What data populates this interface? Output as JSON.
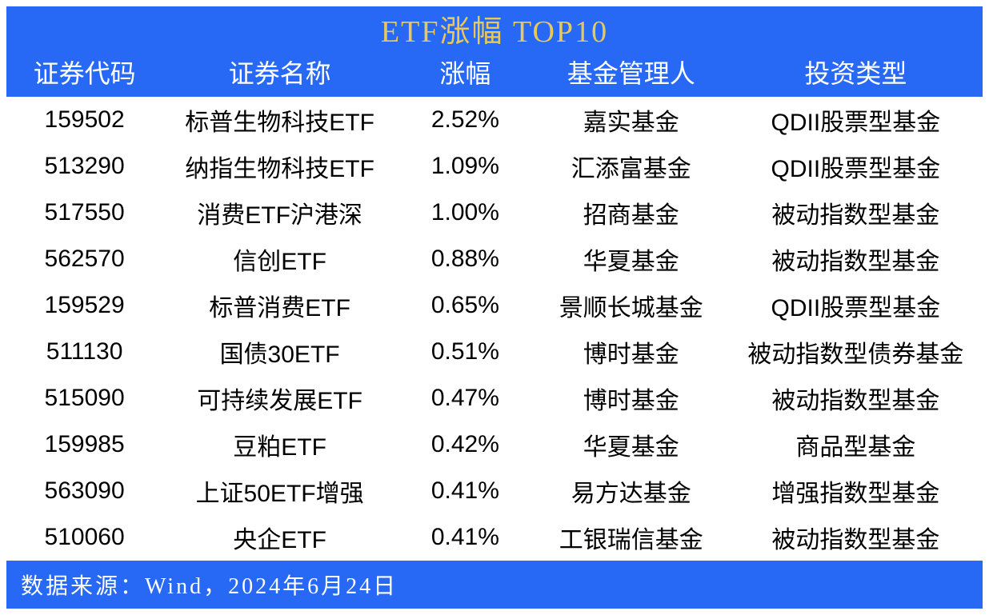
{
  "title": "ETF涨幅  TOP10",
  "columns": {
    "code": "证券代码",
    "name": "证券名称",
    "change": "涨幅",
    "manager": "基金管理人",
    "type": "投资类型"
  },
  "rows": [
    {
      "code": "159502",
      "name": "标普生物科技ETF",
      "change": "2.52%",
      "manager": "嘉实基金",
      "type": "QDII股票型基金"
    },
    {
      "code": "513290",
      "name": "纳指生物科技ETF",
      "change": "1.09%",
      "manager": "汇添富基金",
      "type": "QDII股票型基金"
    },
    {
      "code": "517550",
      "name": "消费ETF沪港深",
      "change": "1.00%",
      "manager": "招商基金",
      "type": "被动指数型基金"
    },
    {
      "code": "562570",
      "name": "信创ETF",
      "change": "0.88%",
      "manager": "华夏基金",
      "type": "被动指数型基金"
    },
    {
      "code": "159529",
      "name": "标普消费ETF",
      "change": "0.65%",
      "manager": "景顺长城基金",
      "type": "QDII股票型基金"
    },
    {
      "code": "511130",
      "name": "国债30ETF",
      "change": "0.51%",
      "manager": "博时基金",
      "type": "被动指数型债券基金"
    },
    {
      "code": "515090",
      "name": "可持续发展ETF",
      "change": "0.47%",
      "manager": "博时基金",
      "type": "被动指数型基金"
    },
    {
      "code": "159985",
      "name": "豆粕ETF",
      "change": "0.42%",
      "manager": "华夏基金",
      "type": "商品型基金"
    },
    {
      "code": "563090",
      "name": "上证50ETF增强",
      "change": "0.41%",
      "manager": "易方达基金",
      "type": "增强指数型基金"
    },
    {
      "code": "510060",
      "name": "央企ETF",
      "change": "0.41%",
      "manager": "工银瑞信基金",
      "type": "被动指数型基金"
    }
  ],
  "footer": "数据来源：Wind，2024年6月24日",
  "styling": {
    "header_bg": "#2769f5",
    "title_color": "#e8c858",
    "header_text_color": "#ffffff",
    "body_text_color": "#000000",
    "body_bg": "#ffffff",
    "title_fontsize": 38,
    "header_fontsize": 32,
    "body_fontsize": 30,
    "footer_fontsize": 28,
    "column_widths": {
      "code": "16%",
      "name": "24%",
      "change": "14%",
      "manager": "20%",
      "type": "26%"
    }
  }
}
